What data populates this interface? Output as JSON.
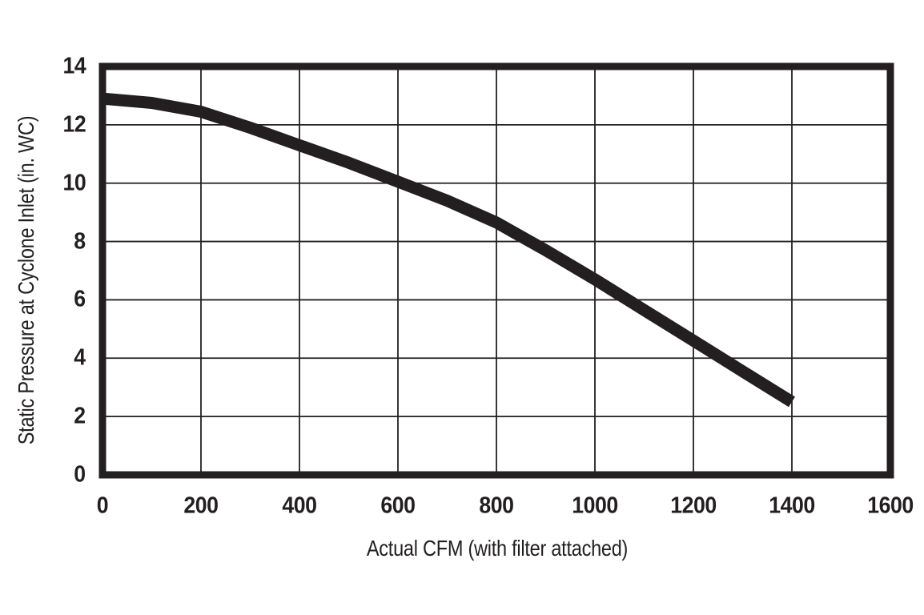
{
  "ink_color": "#231f20",
  "background_color": "#ffffff",
  "chart_data": {
    "type": "line",
    "title": "",
    "xlabel": "Actual CFM (with filter attached)",
    "ylabel": "Static Pressure at Cyclone Inlet (in. WC)",
    "xlim": [
      0,
      1600
    ],
    "ylim": [
      0,
      14
    ],
    "x_ticks": [
      0,
      200,
      400,
      600,
      800,
      1000,
      1200,
      1400,
      1600
    ],
    "y_ticks": [
      0,
      2,
      4,
      6,
      8,
      10,
      12,
      14
    ],
    "grid": true,
    "legend": "none",
    "series": [
      {
        "name": "static-pressure-vs-cfm",
        "x": [
          0,
          100,
          200,
          300,
          400,
          500,
          600,
          700,
          800,
          900,
          1000,
          1100,
          1200,
          1300,
          1400
        ],
        "y": [
          12.9,
          12.75,
          12.45,
          11.9,
          11.3,
          10.7,
          10.05,
          9.4,
          8.65,
          7.7,
          6.7,
          5.65,
          4.6,
          3.55,
          2.5
        ],
        "color": "#231f20",
        "stroke_width": 15
      }
    ]
  }
}
